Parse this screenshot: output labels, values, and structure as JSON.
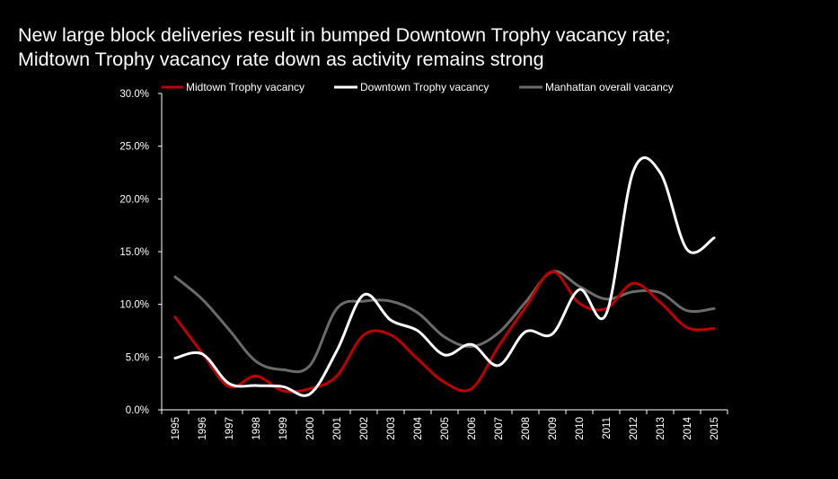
{
  "chart_data": {
    "type": "line",
    "title": "New large block deliveries result in bumped Downtown Trophy vacancy rate; Midtown Trophy vacancy rate down as activity remains strong",
    "title_lines": [
      "New large block deliveries result in bumped Downtown Trophy vacancy rate;",
      "Midtown Trophy vacancy rate down as activity remains strong"
    ],
    "xlabel": "",
    "ylabel": "",
    "categories": [
      "1995",
      "1996",
      "1997",
      "1998",
      "1999",
      "2000",
      "2001",
      "2002",
      "2003",
      "2004",
      "2005",
      "2006",
      "2007",
      "2008",
      "2009",
      "2010",
      "2011",
      "2012",
      "2013",
      "2014",
      "2015"
    ],
    "ylim": [
      0,
      30
    ],
    "y_ticks": [
      0,
      5,
      10,
      15,
      20,
      25,
      30
    ],
    "y_tick_labels": [
      "0.0%",
      "5.0%",
      "10.0%",
      "15.0%",
      "20.0%",
      "25.0%",
      "30.0%"
    ],
    "grid": false,
    "legend_position": "top",
    "series": [
      {
        "name": "Midtown Trophy vacancy",
        "color": "#c00000",
        "values": [
          8.8,
          5.4,
          2.2,
          3.2,
          1.8,
          2.0,
          3.2,
          7.1,
          7.1,
          4.8,
          2.6,
          2.0,
          6.0,
          9.7,
          13.1,
          10.1,
          9.6,
          12.0,
          10.2,
          7.8,
          7.7
        ]
      },
      {
        "name": "Downtown Trophy vacancy",
        "color": "#ffffff",
        "values": [
          4.9,
          5.3,
          2.5,
          2.3,
          2.2,
          1.5,
          5.6,
          10.9,
          8.5,
          7.5,
          5.2,
          6.2,
          4.2,
          7.4,
          7.2,
          11.4,
          9.1,
          22.6,
          22.5,
          15.2,
          16.3
        ]
      },
      {
        "name": "Manhattan overall vacancy",
        "color": "#6b6b6b",
        "values": [
          12.6,
          10.5,
          7.6,
          4.6,
          3.8,
          4.2,
          9.6,
          10.3,
          10.3,
          9.2,
          6.9,
          6.0,
          7.3,
          10.2,
          13.1,
          11.7,
          10.5,
          11.2,
          11.1,
          9.4,
          9.6
        ]
      }
    ]
  }
}
